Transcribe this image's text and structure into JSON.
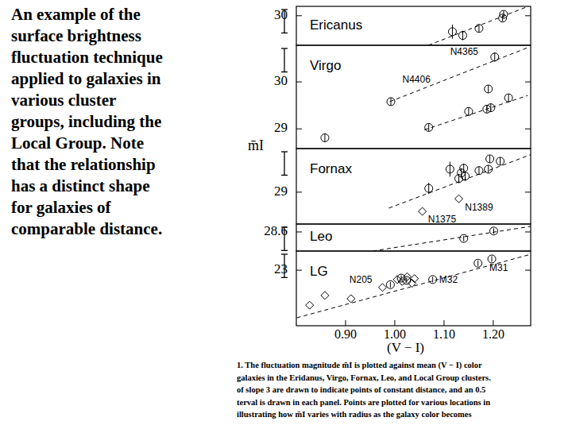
{
  "slide_text": [
    "An example of the",
    "surface brightness",
    "fluctuation technique",
    "applied to galaxies in",
    "various cluster",
    "groups, including the",
    "Local Group. Note",
    "that the relationship",
    "has a distinct shape",
    "for galaxies of",
    "comparable distance."
  ],
  "caption": [
    "1.   The fluctuation magnitude m̄I is plotted against mean (V − I) color",
    "galaxies in the Eridanus, Virgo, Fornax, Leo, and Local Group clusters.",
    "of slope 3 are drawn to indicate points of constant distance, and an 0.5",
    "terval is drawn in each panel. Points are plotted for various locations in",
    "illustrating how m̄I varies with radius as the galaxy color becomes"
  ],
  "chart_data": [
    {
      "type": "scatter",
      "title": "Ericanus",
      "xlim": [
        0.8,
        1.276
      ],
      "ylim": [
        29.37,
        30.2
      ],
      "yticks": [
        30
      ],
      "interval": 0.5,
      "series": [
        {
          "type": "scatter",
          "marker": "circle",
          "x": [
            1.117,
            1.138,
            1.171,
            1.219,
            1.221
          ],
          "values": [
            29.66,
            29.58,
            29.73,
            29.95,
            30.03
          ],
          "errors": [
            0.15,
            0.1,
            0.08,
            0.07,
            0.07
          ]
        },
        {
          "type": "line",
          "line_style": "dashed",
          "x": [
            1.068,
            1.271
          ],
          "values": [
            29.37,
            30.2
          ]
        }
      ]
    },
    {
      "type": "scatter",
      "title": "Virgo",
      "xlim": [
        0.8,
        1.276
      ],
      "ylim": [
        28.58,
        30.78
      ],
      "yticks": [
        29,
        30
      ],
      "interval": 0.5,
      "annotations": [
        {
          "text": "N4365",
          "x": 1.141,
          "y": 30.63
        },
        {
          "text": "N4406",
          "x": 1.044,
          "y": 30.03
        }
      ],
      "series": [
        {
          "type": "scatter",
          "marker": "circle",
          "x": [
            1.203,
            0.992,
            1.069,
            1.19,
            1.15,
            1.187,
            1.195,
            1.231,
            0.858
          ],
          "values": [
            30.53,
            29.58,
            29.03,
            29.85,
            29.37,
            29.42,
            29.45,
            29.66,
            28.81
          ],
          "errors": [
            0.1,
            0.08,
            0.08,
            0.08,
            0.08,
            0.08,
            0.08,
            0.08,
            0.08
          ]
        },
        {
          "type": "line",
          "line_style": "dashed",
          "x": [
            0.99,
            1.27
          ],
          "values": [
            29.58,
            30.73
          ]
        },
        {
          "type": "line",
          "line_style": "dashed",
          "x": [
            1.06,
            1.27
          ],
          "values": [
            28.98,
            29.71
          ]
        }
      ]
    },
    {
      "type": "scatter",
      "title": "Fornax",
      "ylabel": "m̄I",
      "xlim": [
        0.8,
        1.276
      ],
      "ylim": [
        28.32,
        29.93
      ],
      "yticks": [
        29
      ],
      "interval": 0.5,
      "annotations": [
        {
          "text": "N1389",
          "x": 1.171,
          "y": 28.66
        },
        {
          "text": "N1375",
          "x": 1.096,
          "y": 28.41
        }
      ],
      "series": [
        {
          "type": "scatter",
          "marker": "circle",
          "x": [
            1.069,
            1.112,
            1.135,
            1.14,
            1.143,
            1.13,
            1.171,
            1.193,
            1.214,
            1.19
          ],
          "values": [
            29.08,
            29.49,
            29.41,
            29.51,
            29.34,
            29.29,
            29.46,
            29.71,
            29.66,
            29.49
          ],
          "errors": [
            0.12,
            0.16,
            0.1,
            0.1,
            0.1,
            0.1,
            0.08,
            0.08,
            0.08,
            0.08
          ]
        },
        {
          "type": "scatter",
          "marker": "diamond",
          "x": [
            1.13,
            1.056
          ],
          "values": [
            28.86,
            28.59
          ]
        },
        {
          "type": "line",
          "line_style": "dashed",
          "x": [
            0.988,
            1.276
          ],
          "values": [
            28.66,
            29.8
          ]
        }
      ]
    },
    {
      "type": "scatter",
      "title": "Leo",
      "xlim": [
        0.8,
        1.276
      ],
      "ylim": [
        28.19,
        28.77
      ],
      "yticks": [
        28.6
      ],
      "interval": 0.5,
      "series": [
        {
          "type": "scatter",
          "marker": "circle",
          "x": [
            1.14,
            1.201
          ],
          "values": [
            28.46,
            28.62
          ],
          "errors": [
            0.06,
            0.06
          ]
        },
        {
          "type": "line",
          "line_style": "dashed",
          "x": [
            0.955,
            1.276
          ],
          "values": [
            28.19,
            28.72
          ]
        }
      ]
    },
    {
      "type": "scatter",
      "title": "LG",
      "xlabel": "(V − I)",
      "xlim": [
        0.8,
        1.276
      ],
      "ylim": [
        21.81,
        23.41
      ],
      "yticks": [
        23
      ],
      "interval": 0.5,
      "xticks": [
        {
          "value": 0.9,
          "label": "0.90"
        },
        {
          "value": 1.0,
          "label": "1.00"
        },
        {
          "value": 1.1,
          "label": "1.10"
        },
        {
          "value": 1.2,
          "label": "1.20"
        }
      ],
      "annotations": [
        {
          "text": "N205",
          "x": 0.931,
          "y": 22.78
        },
        {
          "text": "M32",
          "x": 1.109,
          "y": 22.78
        },
        {
          "text": "M31",
          "x": 1.211,
          "y": 23.03
        }
      ],
      "series": [
        {
          "type": "scatter",
          "marker": "diamond",
          "x": [
            0.827,
            0.858,
            0.911,
            0.975,
            1.005,
            1.015,
            1.025,
            1.035,
            1.04
          ],
          "values": [
            22.25,
            22.46,
            22.39,
            22.63,
            22.8,
            22.76,
            22.86,
            22.72,
            22.82
          ]
        },
        {
          "type": "scatter",
          "marker": "circle",
          "x": [
            0.991,
            1.013,
            1.024,
            1.077,
            1.169,
            1.197
          ],
          "values": [
            22.69,
            22.83,
            22.78,
            22.8,
            23.15,
            23.24
          ],
          "errors": [
            0.06,
            0.06,
            0.06,
            0.06,
            0.06,
            0.06
          ]
        },
        {
          "type": "line",
          "line_style": "dashed",
          "x": [
            0.801,
            1.276
          ],
          "values": [
            21.98,
            23.34
          ]
        }
      ]
    }
  ]
}
